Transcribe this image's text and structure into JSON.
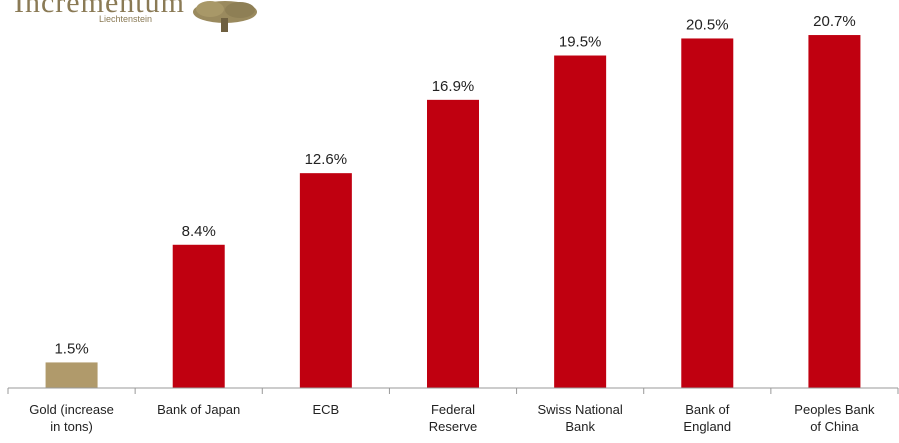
{
  "logo": {
    "name": "Incrementum",
    "sub": "Liechtenstein",
    "colors": {
      "text": "#8a7a55",
      "tree": "#9a8a5e"
    }
  },
  "chart_data": {
    "type": "bar",
    "categories": [
      [
        "Gold (increase",
        "in tons)"
      ],
      [
        "Bank of Japan"
      ],
      [
        "ECB"
      ],
      [
        "Federal",
        "Reserve"
      ],
      [
        "Swiss National",
        "Bank"
      ],
      [
        "Bank of",
        "England"
      ],
      [
        "Peoples Bank",
        "of China"
      ]
    ],
    "values": [
      1.5,
      8.4,
      12.6,
      16.9,
      19.5,
      20.5,
      20.7
    ],
    "data_labels": [
      "1.5%",
      "8.4%",
      "12.6%",
      "16.9%",
      "19.5%",
      "20.5%",
      "20.7%"
    ],
    "colors": [
      "#b09a6b",
      "#c00010",
      "#c00010",
      "#c00010",
      "#c00010",
      "#c00010",
      "#c00010"
    ],
    "ylim": [
      0,
      21.7
    ],
    "grid": false,
    "legend": "none"
  }
}
